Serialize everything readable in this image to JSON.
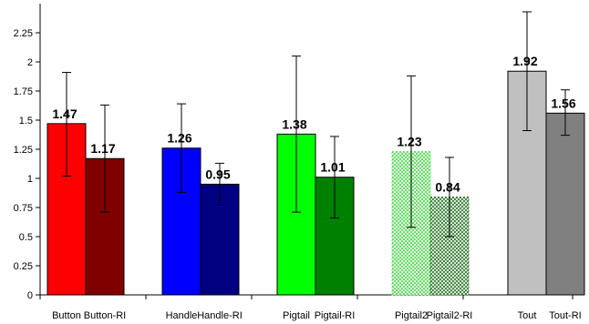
{
  "chart_data": {
    "type": "bar",
    "title": "",
    "xlabel": "",
    "ylabel": "",
    "ylim": [
      0,
      2.5
    ],
    "yticks": [
      0,
      0.25,
      0.5,
      0.75,
      1,
      1.25,
      1.5,
      1.75,
      2,
      2.25
    ],
    "ytick_labels": [
      "0",
      "0.25",
      "0.5",
      "0.75",
      "1",
      "1.25",
      "1.5",
      "1.75",
      "2",
      "2.25"
    ],
    "grid": false,
    "legend": "none",
    "categories": [
      "Button",
      "Button-RI",
      "Handle",
      "Handle-RI",
      "Pigtail",
      "Pigtail-RI",
      "Pigtail2",
      "Pigtail2-RI",
      "Tout",
      "Tout-RI"
    ],
    "values": [
      1.47,
      1.17,
      1.26,
      0.95,
      1.38,
      1.01,
      1.23,
      0.84,
      1.92,
      1.56
    ],
    "value_labels": [
      "1.47",
      "1.17",
      "1.26",
      "0.95",
      "1.38",
      "1.01",
      "1.23",
      "0.84",
      "1.92",
      "1.56"
    ],
    "error_low": [
      1.02,
      0.71,
      0.88,
      0.77,
      0.71,
      0.66,
      0.58,
      0.5,
      1.41,
      1.37
    ],
    "error_high": [
      1.91,
      1.63,
      1.64,
      1.13,
      2.05,
      1.36,
      1.88,
      1.18,
      2.43,
      1.76
    ],
    "colors": [
      "#ff0000",
      "#800000",
      "#0000ff",
      "#000080",
      "#00ff00",
      "#008000",
      "#99ee99",
      "#66aa66",
      "#c0c0c0",
      "#808080"
    ],
    "patterns": [
      "solid",
      "solid",
      "solid",
      "solid",
      "solid",
      "solid",
      "dotted-light",
      "dotted-dark",
      "solid",
      "solid"
    ],
    "groups": [
      [
        0,
        1
      ],
      [
        2,
        3
      ],
      [
        4,
        5
      ],
      [
        6,
        7
      ],
      [
        8,
        9
      ]
    ]
  }
}
